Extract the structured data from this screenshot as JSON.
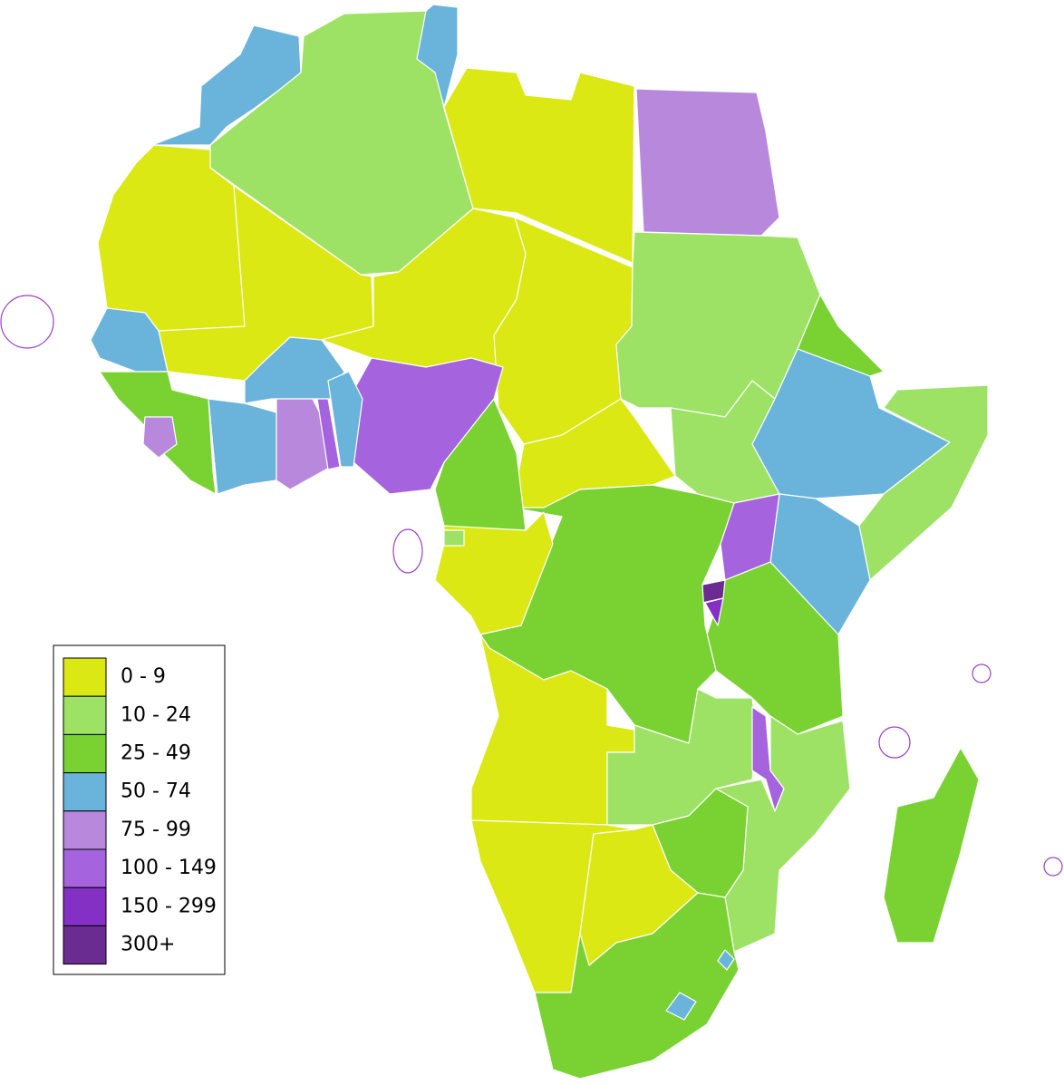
{
  "legend": {
    "items": [
      {
        "label": "0 - 9",
        "color": "#dbe813"
      },
      {
        "label": "10 - 24",
        "color": "#9de264"
      },
      {
        "label": "25 - 49",
        "color": "#79d232"
      },
      {
        "label": "50 - 74",
        "color": "#6ab4dc"
      },
      {
        "label": "75 - 99",
        "color": "#b888dd"
      },
      {
        "label": "100 - 149",
        "color": "#a563dd"
      },
      {
        "label": "150 - 299",
        "color": "#8530c5"
      },
      {
        "label": "300+",
        "color": "#6b2c91"
      }
    ]
  }
}
